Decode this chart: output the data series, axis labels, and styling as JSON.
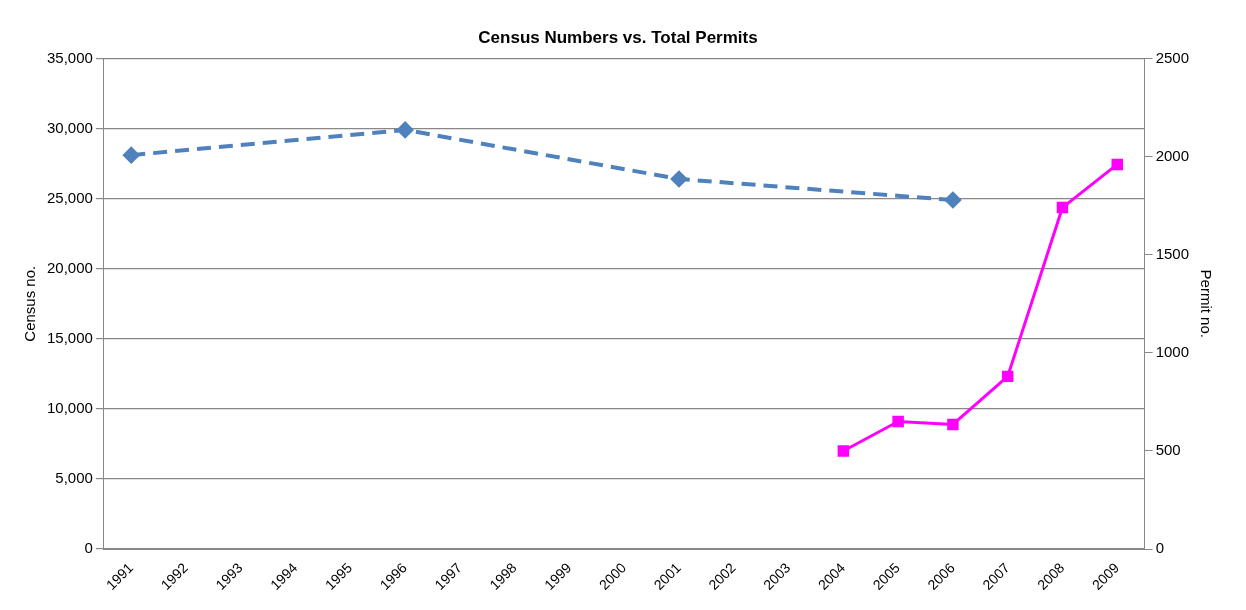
{
  "chart_data": {
    "type": "line",
    "title": "Census Numbers vs. Total Permits",
    "ylabel": "Census no.",
    "y2label": "Permit no.",
    "categories": [
      "1991",
      "1992",
      "1993",
      "1994",
      "1995",
      "1996",
      "1997",
      "1998",
      "1999",
      "2000",
      "2001",
      "2002",
      "2003",
      "2004",
      "2005",
      "2006",
      "2007",
      "2008",
      "2009"
    ],
    "series": [
      {
        "color": "#4f81bd",
        "marker": "diamond",
        "line_style": "dashed",
        "values": [
          28100,
          null,
          null,
          null,
          null,
          29900,
          null,
          null,
          null,
          null,
          26400,
          null,
          null,
          null,
          null,
          24900,
          null,
          null,
          null
        ]
      },
      {
        "color": "#ff00ff",
        "marker": "square",
        "line_style": "solid",
        "axis": "y2",
        "values": [
          null,
          null,
          null,
          null,
          null,
          null,
          null,
          null,
          null,
          null,
          null,
          null,
          null,
          500,
          650,
          635,
          880,
          1740,
          1960
        ]
      }
    ],
    "ylim": [
      0,
      35000
    ],
    "yticks": [
      0,
      {
        "value": 5000,
        "label": "5,000"
      },
      {
        "value": 10000,
        "label": "10,000"
      },
      {
        "value": 15000,
        "label": "15,000"
      },
      {
        "value": 20000,
        "label": "20,000"
      },
      {
        "value": 25000,
        "label": "25,000"
      },
      {
        "value": 30000,
        "label": "30,000"
      },
      {
        "value": 35000,
        "label": "35,000"
      }
    ],
    "y2lim": [
      0,
      2500
    ],
    "y2ticks": [
      0,
      500,
      1000,
      1500,
      2000,
      2500
    ],
    "grid": "y",
    "legend": false
  }
}
